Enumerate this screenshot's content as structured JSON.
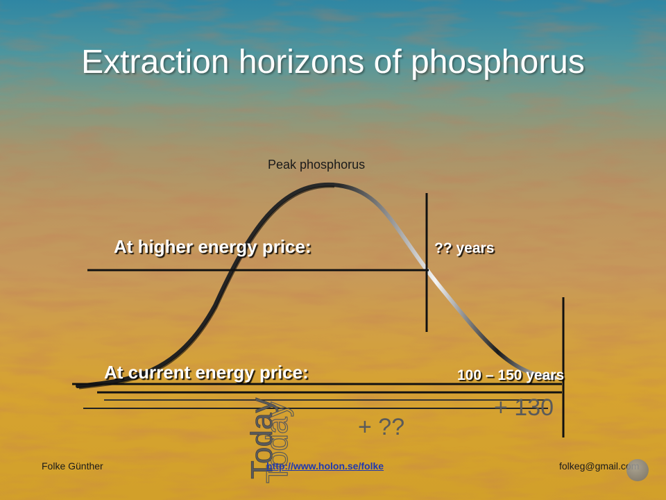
{
  "slide": {
    "title": "Extraction horizons of phosphorus",
    "peak_label": "Peak phosphorus",
    "higher_price_label": "At higher energy price:",
    "higher_years": "?? years",
    "current_price_label": "At current energy price:",
    "current_years": "100 – 150 years",
    "today_label": "Today",
    "plus_unknown": "+ ??",
    "plus_130": "+ 130"
  },
  "footer": {
    "author": "Folke Günther",
    "url": "http://www.holon.se/folke",
    "email": "folkeg@gmail.com"
  },
  "colors": {
    "curve": "#1a1a1a",
    "text_white": "#ffffff",
    "link": "#1f39b0",
    "handwriting": "#5a5a5a"
  }
}
